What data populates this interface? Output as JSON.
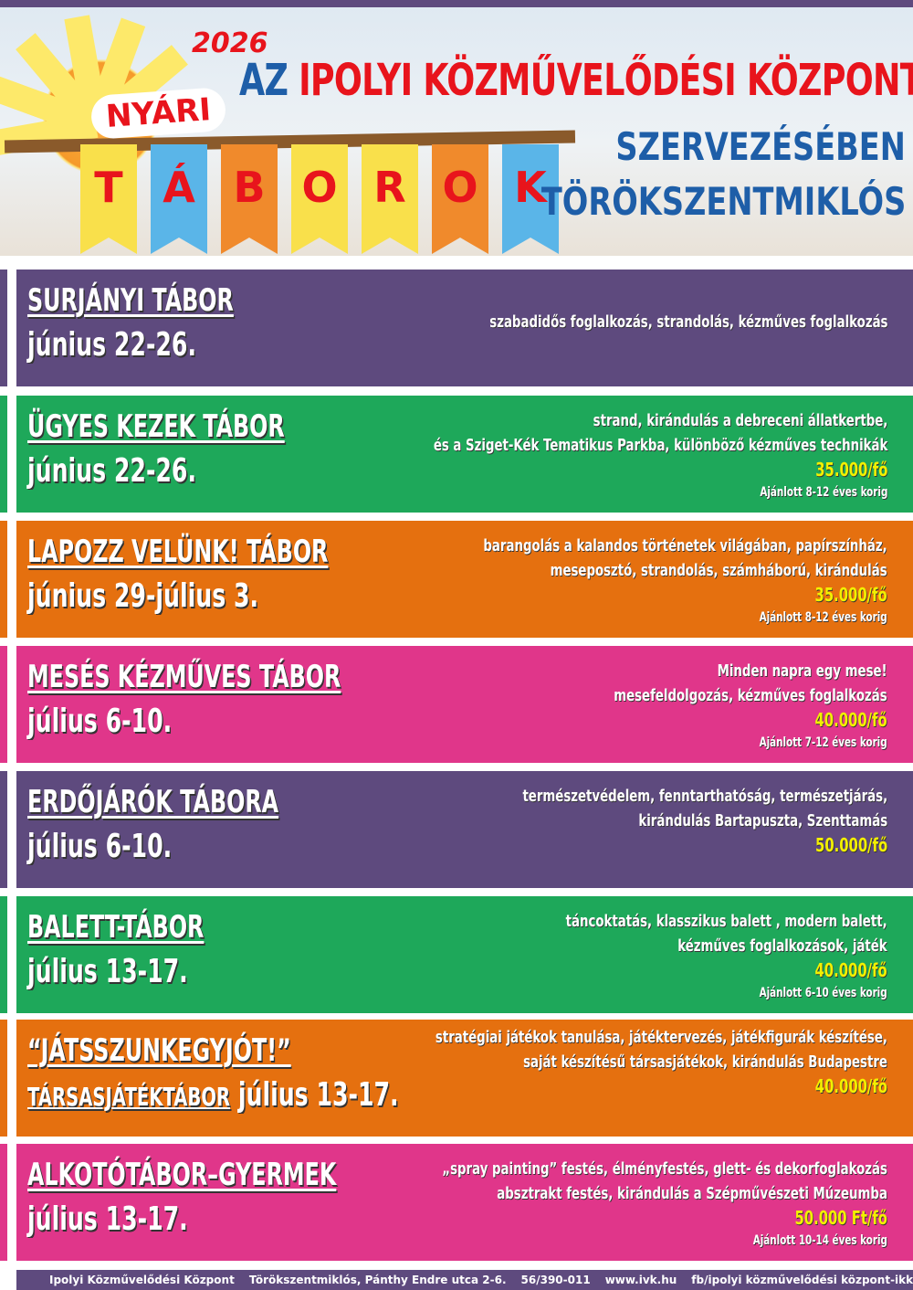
{
  "header": {
    "year": "2026",
    "org": "AZ IPOLYI KÖZMŰVELŐDÉSI KÖZPONT",
    "subtitle": "SZERVEZÉSÉBEN",
    "town": "TÖRÖKSZENTMIKLÓS",
    "badge": "NYÁRI",
    "flags": [
      "T",
      "Á",
      "B",
      "O",
      "R",
      "O",
      "K"
    ],
    "flag_colors": [
      "#f9e04b",
      "#5ab5e8",
      "#f08a2c",
      "#f9e04b",
      "#f9e04b",
      "#f08a2c",
      "#5ab5e8"
    ]
  },
  "colors": {
    "purple": "#5e4a7e",
    "green": "#1ea85a",
    "orange": "#e5700f",
    "pink": "#e0368a",
    "price": "#f3f000"
  },
  "camps": [
    {
      "name": "SURJÁNYI TÁBOR",
      "date": "június 22-26.",
      "lines": [
        "szabadidős foglalkozás, strandolás, kézműves foglalkozás"
      ],
      "price": "",
      "age": "",
      "color": "#5e4a7e"
    },
    {
      "name": "ÜGYES KEZEK TÁBOR",
      "date": "június 22-26.",
      "lines": [
        "strand, kirándulás a debreceni állatkertbe,",
        "és a Sziget-Kék Tematikus Parkba, különböző kézműves technikák"
      ],
      "price": "35.000/fő",
      "age": "Ajánlott 8-12 éves korig",
      "color": "#1ea85a"
    },
    {
      "name": "LAPOZZ VELÜNK! TÁBOR",
      "date": "június 29-július 3.",
      "lines": [
        "barangolás a kalandos történetek világában, papírszínház,",
        "meseposztó, strandolás, számháború, kirándulás"
      ],
      "price": "35.000/fő",
      "age": "Ajánlott 8-12 éves korig",
      "color": "#e5700f"
    },
    {
      "name": "MESÉS KÉZMŰVES TÁBOR",
      "date": "július 6-10.",
      "lines": [
        "Minden napra egy mese!",
        "mesefeldolgozás, kézműves foglalkozás"
      ],
      "price": "40.000/fő",
      "age": "Ajánlott 7-12 éves korig",
      "color": "#e0368a"
    },
    {
      "name": "ERDŐJÁRÓK TÁBORA",
      "date": "július 6-10.",
      "lines": [
        "természetvédelem, fenntarthatóság, természetjárás,",
        "kirándulás Bartapuszta, Szenttamás"
      ],
      "price": "50.000/fő",
      "age": "",
      "color": "#5e4a7e"
    },
    {
      "name": "BALETT-TÁBOR",
      "date": "július 13-17.",
      "lines": [
        "táncoktatás, klasszikus balett , modern balett,",
        "kézműves foglalkozások, játék"
      ],
      "price": "40.000/fő",
      "age": "Ajánlott 6-10 éves korig",
      "color": "#1ea85a"
    },
    {
      "name": "“JÁTSSZUNKEGYJÓT!”",
      "name2": "TÁRSASJÁTÉKTÁBOR",
      "date": "július 13-17.",
      "lines": [
        "stratégiai játékok tanulása, játéktervezés, játékfigurák készítése,",
        "saját készítésű társasjátékok, kirándulás Budapestre"
      ],
      "price": "40.000/fő",
      "age": "",
      "color": "#e5700f"
    },
    {
      "name": "ALKOTÓTÁBOR–GYERMEK",
      "date": "július 13-17.",
      "lines": [
        "„spray painting”  festés, élményfestés, glett- és dekorfoglakozás",
        "absztrakt festés, kirándulás a Szépművészeti Múzeumba"
      ],
      "price": "50.000 Ft/fő",
      "age": "Ajánlott 10-14 éves korig",
      "color": "#e0368a"
    }
  ],
  "footer": [
    "Ipolyi Közművelődési Központ",
    "Törökszentmiklós, Pánthy Endre utca 2-6.",
    "56/390-011",
    "www.ivk.hu",
    "fb/ipolyi közművelődési központ-ikk"
  ]
}
